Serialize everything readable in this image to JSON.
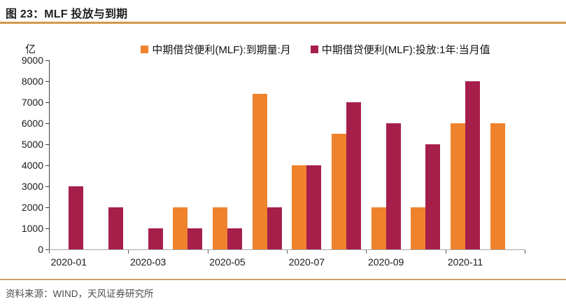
{
  "header": {
    "figure_title": "图 23：MLF 投放与到期"
  },
  "chart_data": {
    "type": "bar",
    "title": "MLF 投放与到期",
    "unit_label": "亿",
    "categories": [
      "2020-01",
      "2020-02",
      "2020-03",
      "2020-04",
      "2020-05",
      "2020-06",
      "2020-07",
      "2020-08",
      "2020-09",
      "2020-10",
      "2020-11",
      "2020-12"
    ],
    "x_tick_labels": [
      "2020-01",
      "2020-03",
      "2020-05",
      "2020-07",
      "2020-09",
      "2020-11"
    ],
    "series": [
      {
        "name": "中期借贷便利(MLF):到期量:月",
        "color": "#EF822C",
        "values": [
          0,
          0,
          0,
          2000,
          2000,
          7400,
          4000,
          5500,
          2000,
          2000,
          6000,
          6000
        ]
      },
      {
        "name": "中期借贷便利(MLF):投放:1年:当月值",
        "color": "#A61F4B",
        "values": [
          3000,
          2000,
          1000,
          1000,
          1000,
          2000,
          4000,
          7000,
          6000,
          5000,
          8000,
          0
        ]
      }
    ],
    "ylim": [
      0,
      9000
    ],
    "ytick_step": 1000,
    "grid": false,
    "legend_position": "top"
  },
  "footer": {
    "source": "资料来源：WIND，天风证券研究所"
  },
  "colors": {
    "rule_top": "#D2984A",
    "rule_bottom": "#C9A36B",
    "axis_y": "#404040",
    "axis_x": "#A6A6A6",
    "tick": "#595959",
    "text": "#1A1A1A",
    "source_text": "#4D4D4D"
  }
}
